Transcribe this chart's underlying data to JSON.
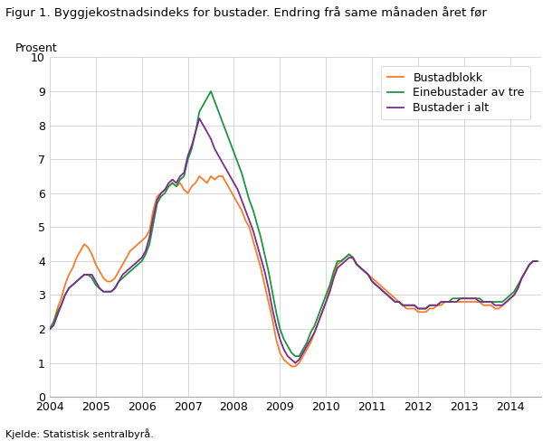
{
  "title": "Figur 1. Byggjekostnadsindeks for bustader. Endring frå same månaden året før",
  "ylabel": "Prosent",
  "source": "Kjelde: Statistisk sentralbyrå.",
  "ylim": [
    0,
    10
  ],
  "yticks": [
    0,
    1,
    2,
    3,
    4,
    5,
    6,
    7,
    8,
    9,
    10
  ],
  "xtick_years": [
    2004,
    2005,
    2006,
    2007,
    2008,
    2009,
    2010,
    2011,
    2012,
    2013,
    2014
  ],
  "legend_labels": [
    "Bustadblokk",
    "Einebustader av tre",
    "Bustader i alt"
  ],
  "colors": {
    "bustadblokk": "#F97B2B",
    "einebustader": "#1A9641",
    "bustader_i_alt": "#7B2D8B"
  },
  "bustadblokk": [
    2.0,
    2.2,
    2.6,
    2.9,
    3.3,
    3.6,
    3.8,
    4.1,
    4.3,
    4.5,
    4.4,
    4.2,
    3.9,
    3.7,
    3.5,
    3.4,
    3.4,
    3.5,
    3.7,
    3.9,
    4.1,
    4.3,
    4.4,
    4.5,
    4.6,
    4.7,
    4.9,
    5.5,
    5.9,
    6.0,
    6.1,
    6.2,
    6.3,
    6.2,
    6.3,
    6.1,
    6.0,
    6.2,
    6.3,
    6.5,
    6.4,
    6.3,
    6.5,
    6.4,
    6.5,
    6.5,
    6.3,
    6.1,
    5.9,
    5.7,
    5.5,
    5.2,
    5.0,
    4.6,
    4.2,
    3.8,
    3.3,
    2.8,
    2.3,
    1.7,
    1.3,
    1.1,
    1.0,
    0.9,
    0.9,
    1.0,
    1.2,
    1.4,
    1.6,
    1.9,
    2.2,
    2.5,
    2.8,
    3.2,
    3.6,
    3.9,
    4.0,
    4.1,
    4.2,
    4.1,
    3.9,
    3.8,
    3.7,
    3.6,
    3.5,
    3.4,
    3.3,
    3.2,
    3.1,
    3.0,
    2.9,
    2.8,
    2.7,
    2.6,
    2.6,
    2.6,
    2.5,
    2.5,
    2.5,
    2.6,
    2.6,
    2.7,
    2.7,
    2.8,
    2.8,
    2.8,
    2.8,
    2.8,
    2.8,
    2.8,
    2.8,
    2.8,
    2.8,
    2.7,
    2.7,
    2.7,
    2.6,
    2.6,
    2.7,
    2.8,
    2.9,
    3.0,
    3.2,
    3.5,
    3.7,
    3.9,
    4.0,
    4.0
  ],
  "einebustader": [
    2.0,
    2.2,
    2.5,
    2.7,
    3.0,
    3.2,
    3.3,
    3.4,
    3.5,
    3.6,
    3.6,
    3.5,
    3.3,
    3.2,
    3.1,
    3.1,
    3.1,
    3.2,
    3.4,
    3.5,
    3.6,
    3.7,
    3.8,
    3.9,
    4.0,
    4.2,
    4.5,
    5.1,
    5.7,
    5.9,
    6.0,
    6.2,
    6.3,
    6.2,
    6.4,
    6.5,
    7.0,
    7.3,
    7.8,
    8.4,
    8.6,
    8.8,
    9.0,
    8.7,
    8.4,
    8.1,
    7.8,
    7.5,
    7.2,
    6.9,
    6.6,
    6.2,
    5.8,
    5.5,
    5.1,
    4.7,
    4.2,
    3.7,
    3.1,
    2.5,
    2.0,
    1.7,
    1.5,
    1.3,
    1.2,
    1.2,
    1.4,
    1.6,
    1.9,
    2.1,
    2.4,
    2.7,
    3.0,
    3.3,
    3.7,
    4.0,
    4.0,
    4.1,
    4.2,
    4.1,
    3.9,
    3.8,
    3.7,
    3.6,
    3.4,
    3.3,
    3.2,
    3.1,
    3.0,
    2.9,
    2.8,
    2.8,
    2.7,
    2.7,
    2.7,
    2.7,
    2.6,
    2.6,
    2.6,
    2.7,
    2.7,
    2.7,
    2.8,
    2.8,
    2.8,
    2.9,
    2.9,
    2.9,
    2.9,
    2.9,
    2.9,
    2.9,
    2.9,
    2.8,
    2.8,
    2.8,
    2.8,
    2.8,
    2.8,
    2.9,
    3.0,
    3.1,
    3.3,
    3.5,
    3.7,
    3.9,
    4.0,
    4.0
  ],
  "bustader_i_alt": [
    2.0,
    2.1,
    2.4,
    2.7,
    3.0,
    3.2,
    3.3,
    3.4,
    3.5,
    3.6,
    3.6,
    3.6,
    3.4,
    3.2,
    3.1,
    3.1,
    3.1,
    3.2,
    3.4,
    3.6,
    3.7,
    3.8,
    3.9,
    4.0,
    4.1,
    4.3,
    4.7,
    5.3,
    5.8,
    6.0,
    6.1,
    6.3,
    6.4,
    6.3,
    6.5,
    6.6,
    7.1,
    7.4,
    7.8,
    8.2,
    8.0,
    7.8,
    7.6,
    7.3,
    7.1,
    6.9,
    6.7,
    6.5,
    6.3,
    6.1,
    5.8,
    5.5,
    5.2,
    4.9,
    4.5,
    4.1,
    3.7,
    3.2,
    2.6,
    2.1,
    1.7,
    1.4,
    1.2,
    1.1,
    1.0,
    1.1,
    1.3,
    1.5,
    1.7,
    1.9,
    2.2,
    2.5,
    2.8,
    3.1,
    3.5,
    3.8,
    3.9,
    4.0,
    4.1,
    4.1,
    3.9,
    3.8,
    3.7,
    3.6,
    3.4,
    3.3,
    3.2,
    3.1,
    3.0,
    2.9,
    2.8,
    2.8,
    2.7,
    2.7,
    2.7,
    2.7,
    2.6,
    2.6,
    2.6,
    2.7,
    2.7,
    2.7,
    2.8,
    2.8,
    2.8,
    2.8,
    2.8,
    2.9,
    2.9,
    2.9,
    2.9,
    2.9,
    2.8,
    2.8,
    2.8,
    2.8,
    2.7,
    2.7,
    2.7,
    2.8,
    2.9,
    3.0,
    3.2,
    3.5,
    3.7,
    3.9,
    4.0,
    4.0
  ],
  "n_months": 128,
  "start_year": 2004,
  "start_month": 1
}
